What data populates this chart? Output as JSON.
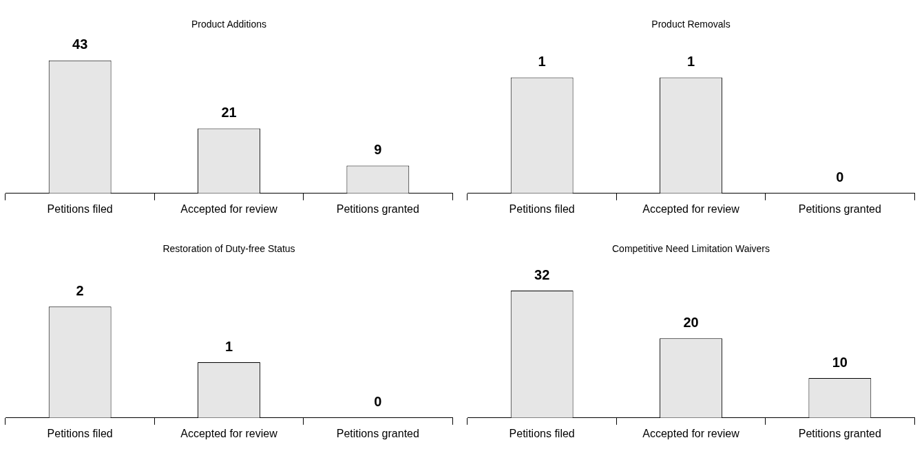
{
  "chart_data": [
    {
      "type": "bar",
      "title": "Product Additions",
      "categories": [
        "Petitions filed",
        "Accepted for review",
        "Petitions granted"
      ],
      "values": [
        43,
        21,
        9
      ],
      "color": "#e6e6e6",
      "data_labels": true,
      "grid": false,
      "legend": false
    },
    {
      "type": "bar",
      "title": "Product Removals",
      "categories": [
        "Petitions filed",
        "Accepted for review",
        "Petitions granted"
      ],
      "values": [
        1,
        1,
        0
      ],
      "color": "#e6e6e6",
      "data_labels": true,
      "grid": false,
      "legend": false
    },
    {
      "type": "bar",
      "title": "Restoration of Duty-free Status",
      "categories": [
        "Petitions filed",
        "Accepted for review",
        "Petitions granted"
      ],
      "values": [
        2,
        1,
        0
      ],
      "color": "#e6e6e6",
      "data_labels": true,
      "grid": false,
      "legend": false
    },
    {
      "type": "bar",
      "title": "Competitive Need Limitation Waivers",
      "categories": [
        "Petitions filed",
        "Accepted for review",
        "Petitions granted"
      ],
      "values": [
        32,
        20,
        10
      ],
      "color": "#e6e6e6",
      "data_labels": true,
      "grid": false,
      "legend": false
    }
  ]
}
